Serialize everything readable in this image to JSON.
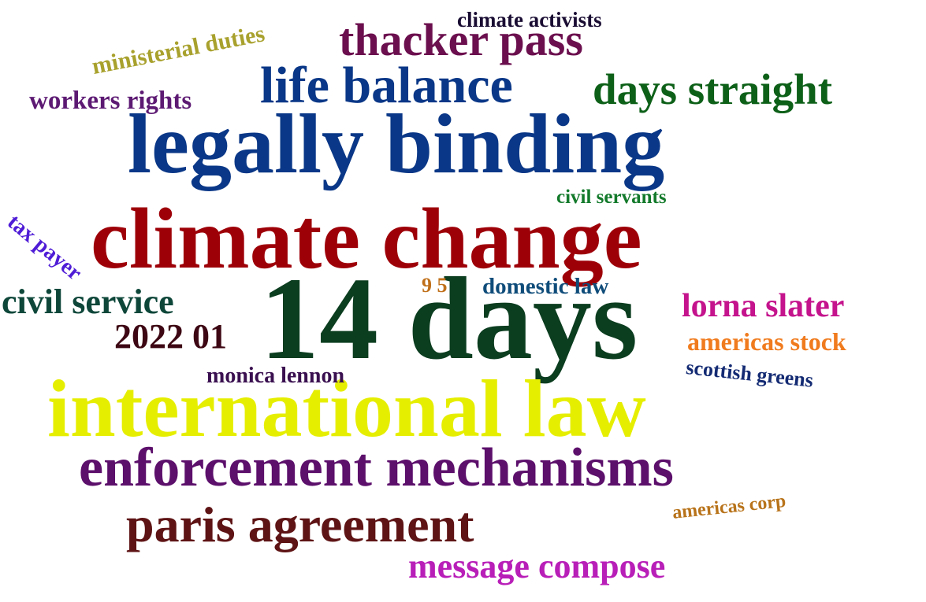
{
  "words": [
    {
      "text": "14 days",
      "color": "#0b3d1f"
    },
    {
      "text": "international law",
      "color": "#e6ee00"
    },
    {
      "text": "climate change",
      "color": "#9e0008"
    },
    {
      "text": "legally binding",
      "color": "#0a3787"
    },
    {
      "text": "enforcement mechanisms",
      "color": "#5c0f6b"
    },
    {
      "text": "paris agreement",
      "color": "#5e1314"
    },
    {
      "text": "life balance",
      "color": "#0a3787"
    },
    {
      "text": "thacker pass",
      "color": "#6b0f4e"
    },
    {
      "text": "days straight",
      "color": "#0d6018"
    },
    {
      "text": "message compose",
      "color": "#b81eb8"
    },
    {
      "text": "civil service",
      "color": "#0e473a"
    },
    {
      "text": "lorna slater",
      "color": "#c4138c"
    },
    {
      "text": "2022 01",
      "color": "#3d0713"
    },
    {
      "text": "americas stock",
      "color": "#f07b1e"
    },
    {
      "text": "workers rights",
      "color": "#5d1a73"
    },
    {
      "text": "ministerial duties",
      "color": "#a8a12d"
    },
    {
      "text": "climate activists",
      "color": "#1a0d33"
    },
    {
      "text": "domestic law",
      "color": "#0f4c7a"
    },
    {
      "text": "monica lennon",
      "color": "#3a1050"
    },
    {
      "text": "scottish greens",
      "color": "#142b73"
    },
    {
      "text": "tax payer",
      "color": "#4f1cd6"
    },
    {
      "text": "civil servants",
      "color": "#137a2b"
    },
    {
      "text": "americas corp",
      "color": "#b8731a"
    },
    {
      "text": "9 5",
      "color": "#c0701a"
    }
  ]
}
